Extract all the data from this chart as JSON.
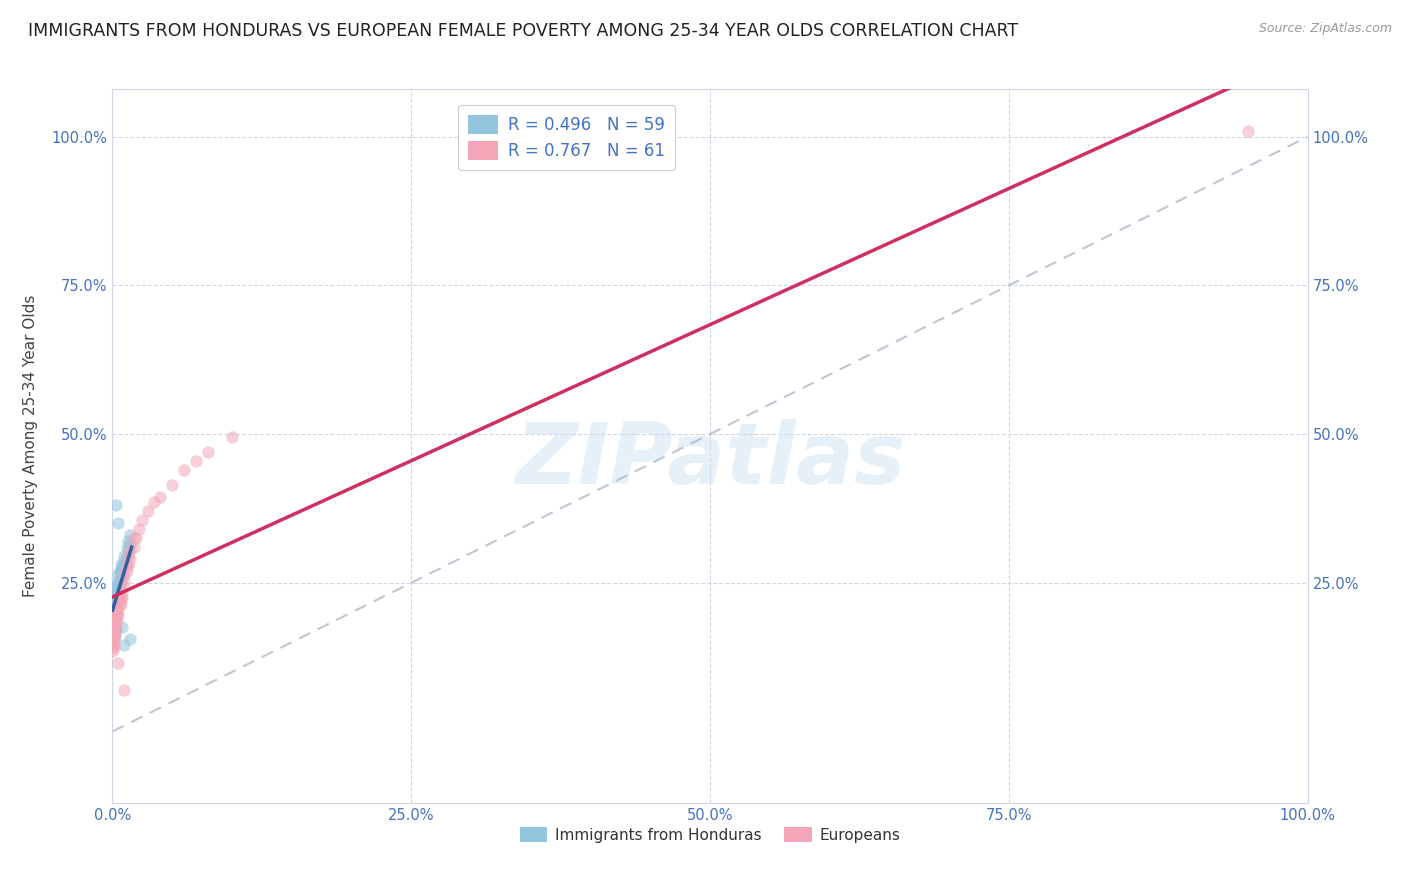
{
  "title": "IMMIGRANTS FROM HONDURAS VS EUROPEAN FEMALE POVERTY AMONG 25-34 YEAR OLDS CORRELATION CHART",
  "source": "Source: ZipAtlas.com",
  "ylabel": "Female Poverty Among 25-34 Year Olds",
  "xlim": [
    0,
    1.0
  ],
  "ylim": [
    -0.12,
    1.08
  ],
  "background_color": "#ffffff",
  "watermark": "ZIPatlas",
  "legend_labels": [
    "Immigrants from Honduras",
    "Europeans"
  ],
  "blue_R": "R = 0.496",
  "blue_N": "N = 59",
  "pink_R": "R = 0.767",
  "pink_N": "N = 61",
  "blue_color": "#92c5de",
  "pink_color": "#f4a6b8",
  "blue_line_color": "#3060a0",
  "pink_line_color": "#d03060",
  "grid_color": "#d0d8e8",
  "title_color": "#222222",
  "legend_text_color": "#4472c4",
  "blue_scatter": [
    [
      0.0,
      0.2
    ],
    [
      0.0,
      0.21
    ],
    [
      0.0,
      0.185
    ],
    [
      0.0,
      0.17
    ],
    [
      0.0,
      0.195
    ],
    [
      0.0,
      0.215
    ],
    [
      0.0,
      0.205
    ],
    [
      0.0,
      0.175
    ],
    [
      0.0,
      0.19
    ],
    [
      0.001,
      0.2
    ],
    [
      0.001,
      0.22
    ],
    [
      0.001,
      0.215
    ],
    [
      0.001,
      0.195
    ],
    [
      0.001,
      0.225
    ],
    [
      0.001,
      0.21
    ],
    [
      0.002,
      0.215
    ],
    [
      0.002,
      0.225
    ],
    [
      0.002,
      0.205
    ],
    [
      0.002,
      0.23
    ],
    [
      0.002,
      0.195
    ],
    [
      0.003,
      0.22
    ],
    [
      0.003,
      0.235
    ],
    [
      0.003,
      0.215
    ],
    [
      0.003,
      0.245
    ],
    [
      0.003,
      0.225
    ],
    [
      0.004,
      0.23
    ],
    [
      0.004,
      0.24
    ],
    [
      0.004,
      0.22
    ],
    [
      0.004,
      0.25
    ],
    [
      0.005,
      0.235
    ],
    [
      0.005,
      0.25
    ],
    [
      0.005,
      0.265
    ],
    [
      0.006,
      0.245
    ],
    [
      0.006,
      0.26
    ],
    [
      0.006,
      0.27
    ],
    [
      0.007,
      0.255
    ],
    [
      0.007,
      0.27
    ],
    [
      0.007,
      0.28
    ],
    [
      0.008,
      0.265
    ],
    [
      0.008,
      0.275
    ],
    [
      0.009,
      0.275
    ],
    [
      0.009,
      0.285
    ],
    [
      0.01,
      0.28
    ],
    [
      0.01,
      0.295
    ],
    [
      0.012,
      0.295
    ],
    [
      0.012,
      0.31
    ],
    [
      0.013,
      0.305
    ],
    [
      0.013,
      0.32
    ],
    [
      0.015,
      0.315
    ],
    [
      0.015,
      0.33
    ],
    [
      0.003,
      0.38
    ],
    [
      0.005,
      0.35
    ],
    [
      0.0,
      0.165
    ],
    [
      0.001,
      0.155
    ],
    [
      0.002,
      0.16
    ],
    [
      0.003,
      0.17
    ],
    [
      0.008,
      0.175
    ],
    [
      0.01,
      0.145
    ],
    [
      0.015,
      0.155
    ]
  ],
  "pink_scatter": [
    [
      0.0,
      0.185
    ],
    [
      0.0,
      0.175
    ],
    [
      0.0,
      0.165
    ],
    [
      0.0,
      0.195
    ],
    [
      0.0,
      0.155
    ],
    [
      0.0,
      0.145
    ],
    [
      0.0,
      0.135
    ],
    [
      0.0,
      0.16
    ],
    [
      0.0,
      0.15
    ],
    [
      0.0,
      0.17
    ],
    [
      0.001,
      0.175
    ],
    [
      0.001,
      0.185
    ],
    [
      0.001,
      0.16
    ],
    [
      0.001,
      0.195
    ],
    [
      0.001,
      0.145
    ],
    [
      0.001,
      0.14
    ],
    [
      0.001,
      0.155
    ],
    [
      0.002,
      0.175
    ],
    [
      0.002,
      0.19
    ],
    [
      0.002,
      0.165
    ],
    [
      0.002,
      0.2
    ],
    [
      0.003,
      0.185
    ],
    [
      0.003,
      0.2
    ],
    [
      0.003,
      0.175
    ],
    [
      0.004,
      0.195
    ],
    [
      0.004,
      0.21
    ],
    [
      0.004,
      0.185
    ],
    [
      0.005,
      0.205
    ],
    [
      0.005,
      0.22
    ],
    [
      0.005,
      0.195
    ],
    [
      0.006,
      0.215
    ],
    [
      0.006,
      0.23
    ],
    [
      0.007,
      0.225
    ],
    [
      0.007,
      0.215
    ],
    [
      0.008,
      0.235
    ],
    [
      0.008,
      0.225
    ],
    [
      0.009,
      0.245
    ],
    [
      0.01,
      0.255
    ],
    [
      0.01,
      0.265
    ],
    [
      0.012,
      0.27
    ],
    [
      0.012,
      0.28
    ],
    [
      0.013,
      0.28
    ],
    [
      0.013,
      0.295
    ],
    [
      0.015,
      0.29
    ],
    [
      0.015,
      0.305
    ],
    [
      0.018,
      0.31
    ],
    [
      0.018,
      0.325
    ],
    [
      0.02,
      0.325
    ],
    [
      0.022,
      0.34
    ],
    [
      0.025,
      0.355
    ],
    [
      0.03,
      0.37
    ],
    [
      0.035,
      0.385
    ],
    [
      0.04,
      0.395
    ],
    [
      0.05,
      0.415
    ],
    [
      0.06,
      0.44
    ],
    [
      0.07,
      0.455
    ],
    [
      0.08,
      0.47
    ],
    [
      0.1,
      0.495
    ],
    [
      0.95,
      1.01
    ],
    [
      0.005,
      0.115
    ],
    [
      0.01,
      0.07
    ]
  ],
  "xtick_labels": [
    "0.0%",
    "25.0%",
    "50.0%",
    "75.0%",
    "100.0%"
  ],
  "xtick_positions": [
    0.0,
    0.25,
    0.5,
    0.75,
    1.0
  ],
  "ytick_labels": [
    "25.0%",
    "50.0%",
    "75.0%",
    "100.0%"
  ],
  "ytick_positions": [
    0.25,
    0.5,
    0.75,
    1.0
  ],
  "marker_size": 80,
  "alpha": 0.55,
  "title_fontsize": 12.5,
  "axis_fontsize": 11,
  "tick_fontsize": 10.5
}
